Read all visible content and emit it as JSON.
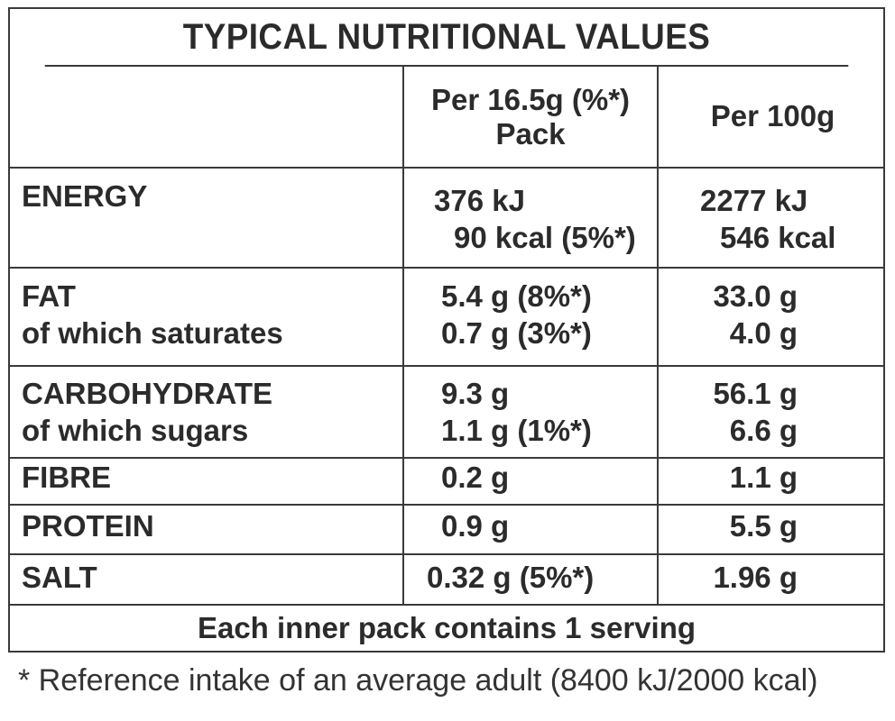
{
  "title": "TYPICAL NUTRITIONAL VALUES",
  "headers": {
    "per_pack": [
      "Per 16.5g (%*)",
      "Pack"
    ],
    "per_100g": "Per 100g"
  },
  "rows": [
    {
      "name": [
        "ENERGY"
      ],
      "pack": [
        "376 kJ",
        "90 kcal (5%*)"
      ],
      "per100": [
        "2277 kJ",
        "546 kcal"
      ]
    },
    {
      "name": [
        "FAT",
        "of which saturates"
      ],
      "pack": [
        "5.4 g (8%*)",
        "0.7 g (3%*)"
      ],
      "per100": [
        "33.0 g",
        "4.0 g"
      ]
    },
    {
      "name": [
        "CARBOHYDRATE",
        "of which sugars"
      ],
      "pack": [
        "9.3 g",
        "1.1 g (1%*)"
      ],
      "per100": [
        "56.1 g",
        "6.6 g"
      ]
    },
    {
      "name": [
        "FIBRE"
      ],
      "pack": [
        "0.2 g"
      ],
      "per100": [
        "1.1 g"
      ]
    },
    {
      "name": [
        "PROTEIN"
      ],
      "pack": [
        "0.9 g"
      ],
      "per100": [
        "5.5 g"
      ]
    },
    {
      "name": [
        "SALT"
      ],
      "pack": [
        "0.32 g (5%*)"
      ],
      "per100": [
        "1.96 g"
      ]
    }
  ],
  "footer": "Each inner pack contains 1 serving",
  "note": "* Reference intake of an average adult (8400 kJ/2000 kcal)"
}
